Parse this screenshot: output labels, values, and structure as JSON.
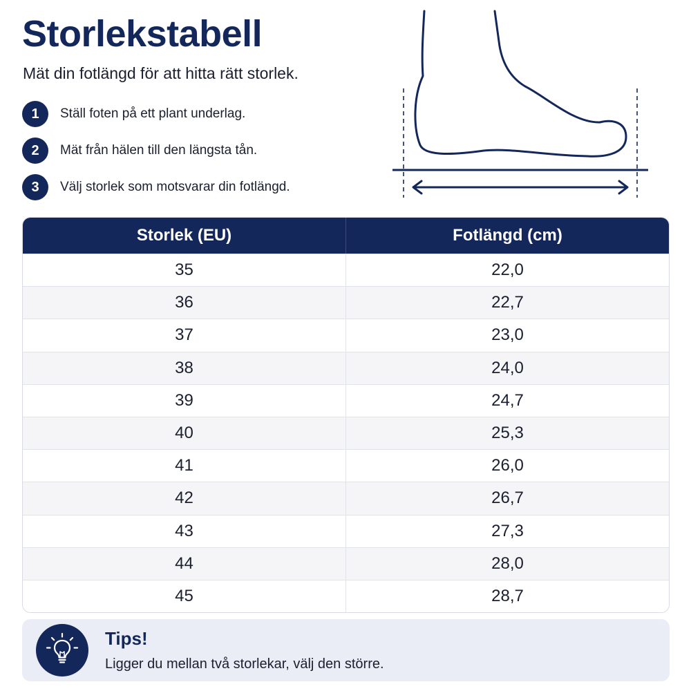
{
  "header": {
    "title": "Storlekstabell",
    "subtitle": "Mät din fotlängd för att hitta rätt storlek."
  },
  "steps": [
    {
      "number": "1",
      "text": "Ställ foten på ett plant underlag."
    },
    {
      "number": "2",
      "text": "Mät från hälen till den längsta tån."
    },
    {
      "number": "3",
      "text": "Välj storlek som motsvarar din fotlängd."
    }
  ],
  "table": {
    "columns": [
      "Storlek (EU)",
      "Fotlängd (cm)"
    ],
    "rows": [
      [
        "35",
        "22,0"
      ],
      [
        "36",
        "22,7"
      ],
      [
        "37",
        "23,0"
      ],
      [
        "38",
        "24,0"
      ],
      [
        "39",
        "24,7"
      ],
      [
        "40",
        "25,3"
      ],
      [
        "41",
        "26,0"
      ],
      [
        "42",
        "26,7"
      ],
      [
        "43",
        "27,3"
      ],
      [
        "44",
        "28,0"
      ],
      [
        "45",
        "28,7"
      ]
    ]
  },
  "tip": {
    "icon": "lightbulb-icon",
    "title": "Tips!",
    "text": "Ligger du mellan två storlekar, välj den större."
  },
  "colors": {
    "primary": "#14275a",
    "tip_background": "#eaecf6",
    "row_alt": "#f5f5f8"
  }
}
